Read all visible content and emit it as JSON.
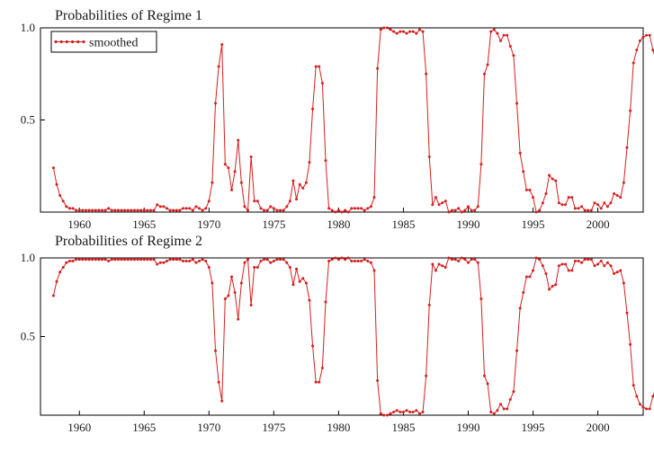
{
  "chart_data": [
    {
      "type": "line",
      "title": "Probabilities of Regime 1",
      "xlabel": "",
      "ylabel": "",
      "xlim": [
        1957.0,
        2003.5
      ],
      "ylim": [
        0,
        1.0
      ],
      "x_ticks": [
        1960,
        1965,
        1970,
        1975,
        1980,
        1985,
        1990,
        1995,
        2000
      ],
      "x_tick_labels": [
        "1960",
        "1965",
        "1970",
        "1975",
        "1980",
        "1985",
        "1990",
        "1995",
        "2000"
      ],
      "y_ticks": [
        0.5,
        1.0
      ],
      "y_tick_labels": [
        "0.5",
        "1.0"
      ],
      "grid": false,
      "legend": {
        "position": "top-left",
        "entries": [
          "smoothed"
        ]
      },
      "colors": {
        "line": "#d42020",
        "frame": "#000000"
      },
      "series": [
        {
          "name": "smoothed",
          "x_start": 1958.0,
          "x_step": 0.25,
          "values": [
            0.24,
            0.15,
            0.09,
            0.06,
            0.03,
            0.02,
            0.02,
            0.01,
            0.01,
            0.01,
            0.01,
            0.01,
            0.01,
            0.01,
            0.01,
            0.01,
            0.01,
            0.02,
            0.01,
            0.01,
            0.01,
            0.01,
            0.01,
            0.01,
            0.01,
            0.01,
            0.01,
            0.01,
            0.01,
            0.01,
            0.01,
            0.01,
            0.04,
            0.03,
            0.03,
            0.02,
            0.01,
            0.01,
            0.01,
            0.01,
            0.02,
            0.02,
            0.02,
            0.01,
            0.03,
            0.02,
            0.01,
            0.02,
            0.06,
            0.16,
            0.59,
            0.79,
            0.91,
            0.26,
            0.24,
            0.12,
            0.22,
            0.39,
            0.16,
            0.03,
            0.01,
            0.3,
            0.06,
            0.06,
            0.02,
            0.01,
            0.01,
            0.03,
            0.02,
            0.01,
            0.01,
            0.01,
            0.03,
            0.06,
            0.17,
            0.07,
            0.15,
            0.13,
            0.16,
            0.27,
            0.56,
            0.79,
            0.79,
            0.7,
            0.28,
            0.02,
            0.01,
            0.0,
            0.01,
            0.0,
            0.01,
            0.0,
            0.02,
            0.02,
            0.02,
            0.02,
            0.01,
            0.02,
            0.03,
            0.08,
            0.78,
            0.99,
            1.0,
            1.0,
            0.99,
            0.98,
            0.97,
            0.98,
            0.98,
            0.97,
            0.98,
            0.98,
            0.97,
            0.99,
            0.98,
            0.75,
            0.3,
            0.04,
            0.08,
            0.04,
            0.05,
            0.06,
            0.0,
            0.01,
            0.01,
            0.02,
            0.0,
            0.01,
            0.03,
            0.01,
            0.01,
            0.03,
            0.26,
            0.75,
            0.8,
            0.98,
            0.99,
            0.97,
            0.93,
            0.96,
            0.96,
            0.9,
            0.85,
            0.59,
            0.32,
            0.22,
            0.12,
            0.12,
            0.08,
            0.0,
            0.01,
            0.05,
            0.1,
            0.2,
            0.18,
            0.17,
            0.05,
            0.04,
            0.04,
            0.08,
            0.08,
            0.02,
            0.02,
            0.03,
            0.01,
            0.01,
            0.01,
            0.05,
            0.04,
            0.02,
            0.05,
            0.03,
            0.05,
            0.1,
            0.09,
            0.08,
            0.16,
            0.35,
            0.55,
            0.81,
            0.88,
            0.93,
            0.95,
            0.96,
            0.96,
            0.88,
            0.82
          ]
        }
      ]
    },
    {
      "type": "line",
      "title": "Probabilities of Regime 2",
      "xlabel": "",
      "ylabel": "",
      "xlim": [
        1957.0,
        2003.5
      ],
      "ylim": [
        0,
        1.0
      ],
      "x_ticks": [
        1960,
        1965,
        1970,
        1975,
        1980,
        1985,
        1990,
        1995,
        2000
      ],
      "x_tick_labels": [
        "1960",
        "1965",
        "1970",
        "1975",
        "1980",
        "1985",
        "1990",
        "1995",
        "2000"
      ],
      "y_ticks": [
        0.5,
        1.0
      ],
      "y_tick_labels": [
        "0.5",
        "1.0"
      ],
      "grid": false,
      "colors": {
        "line": "#d42020",
        "frame": "#000000"
      },
      "series": [
        {
          "x_start": 1958.0,
          "x_step": 0.25,
          "values": [
            0.76,
            0.85,
            0.91,
            0.94,
            0.97,
            0.98,
            0.98,
            0.99,
            0.99,
            0.99,
            0.99,
            0.99,
            0.99,
            0.99,
            0.99,
            0.99,
            0.99,
            0.98,
            0.99,
            0.99,
            0.99,
            0.99,
            0.99,
            0.99,
            0.99,
            0.99,
            0.99,
            0.99,
            0.99,
            0.99,
            0.99,
            0.99,
            0.96,
            0.97,
            0.97,
            0.98,
            0.99,
            0.99,
            0.99,
            0.99,
            0.98,
            0.98,
            0.98,
            0.99,
            0.97,
            0.98,
            0.99,
            0.98,
            0.94,
            0.84,
            0.41,
            0.21,
            0.09,
            0.74,
            0.76,
            0.88,
            0.78,
            0.61,
            0.84,
            0.97,
            0.99,
            0.7,
            0.94,
            0.94,
            0.98,
            0.99,
            0.99,
            0.97,
            0.98,
            0.99,
            0.99,
            0.99,
            0.97,
            0.94,
            0.83,
            0.93,
            0.85,
            0.87,
            0.84,
            0.73,
            0.44,
            0.21,
            0.21,
            0.3,
            0.72,
            0.98,
            0.99,
            1.0,
            0.99,
            1.0,
            0.99,
            1.0,
            0.98,
            0.98,
            0.98,
            0.98,
            0.99,
            0.98,
            0.97,
            0.92,
            0.22,
            0.01,
            0.0,
            0.0,
            0.01,
            0.02,
            0.03,
            0.02,
            0.02,
            0.03,
            0.02,
            0.02,
            0.03,
            0.01,
            0.02,
            0.25,
            0.7,
            0.96,
            0.92,
            0.96,
            0.95,
            0.94,
            1.0,
            0.99,
            0.99,
            0.98,
            1.0,
            0.99,
            0.97,
            0.99,
            0.99,
            0.97,
            0.74,
            0.25,
            0.2,
            0.02,
            0.01,
            0.03,
            0.07,
            0.04,
            0.04,
            0.1,
            0.15,
            0.41,
            0.68,
            0.78,
            0.88,
            0.88,
            0.92,
            1.0,
            0.99,
            0.95,
            0.9,
            0.8,
            0.82,
            0.83,
            0.95,
            0.96,
            0.96,
            0.92,
            0.92,
            0.98,
            0.98,
            0.97,
            0.99,
            0.99,
            0.99,
            0.95,
            0.96,
            0.98,
            0.95,
            0.97,
            0.95,
            0.9,
            0.91,
            0.92,
            0.84,
            0.65,
            0.45,
            0.19,
            0.12,
            0.07,
            0.05,
            0.04,
            0.04,
            0.12,
            0.18
          ]
        }
      ]
    }
  ]
}
